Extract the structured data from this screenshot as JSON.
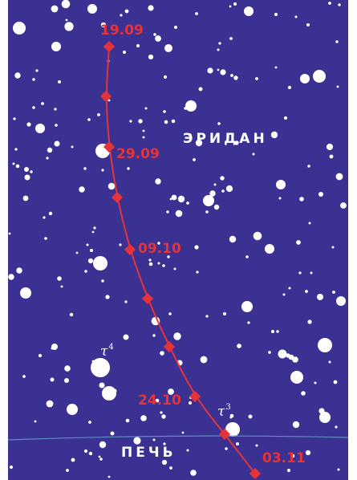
{
  "colors": {
    "sky": "#3a3192",
    "stars": "#ffffff",
    "track": "#e5333a",
    "boundary": "#5e8ec4"
  },
  "constellations": {
    "upper": "ЭРИДАН",
    "lower": "ПЕЧЬ"
  },
  "track_dates": [
    "19.09",
    "29.09",
    "09.10",
    "24.10",
    "03.11"
  ],
  "star_labels": [
    {
      "letter": "τ",
      "index": "4"
    },
    {
      "letter": "τ",
      "index": "3"
    }
  ]
}
